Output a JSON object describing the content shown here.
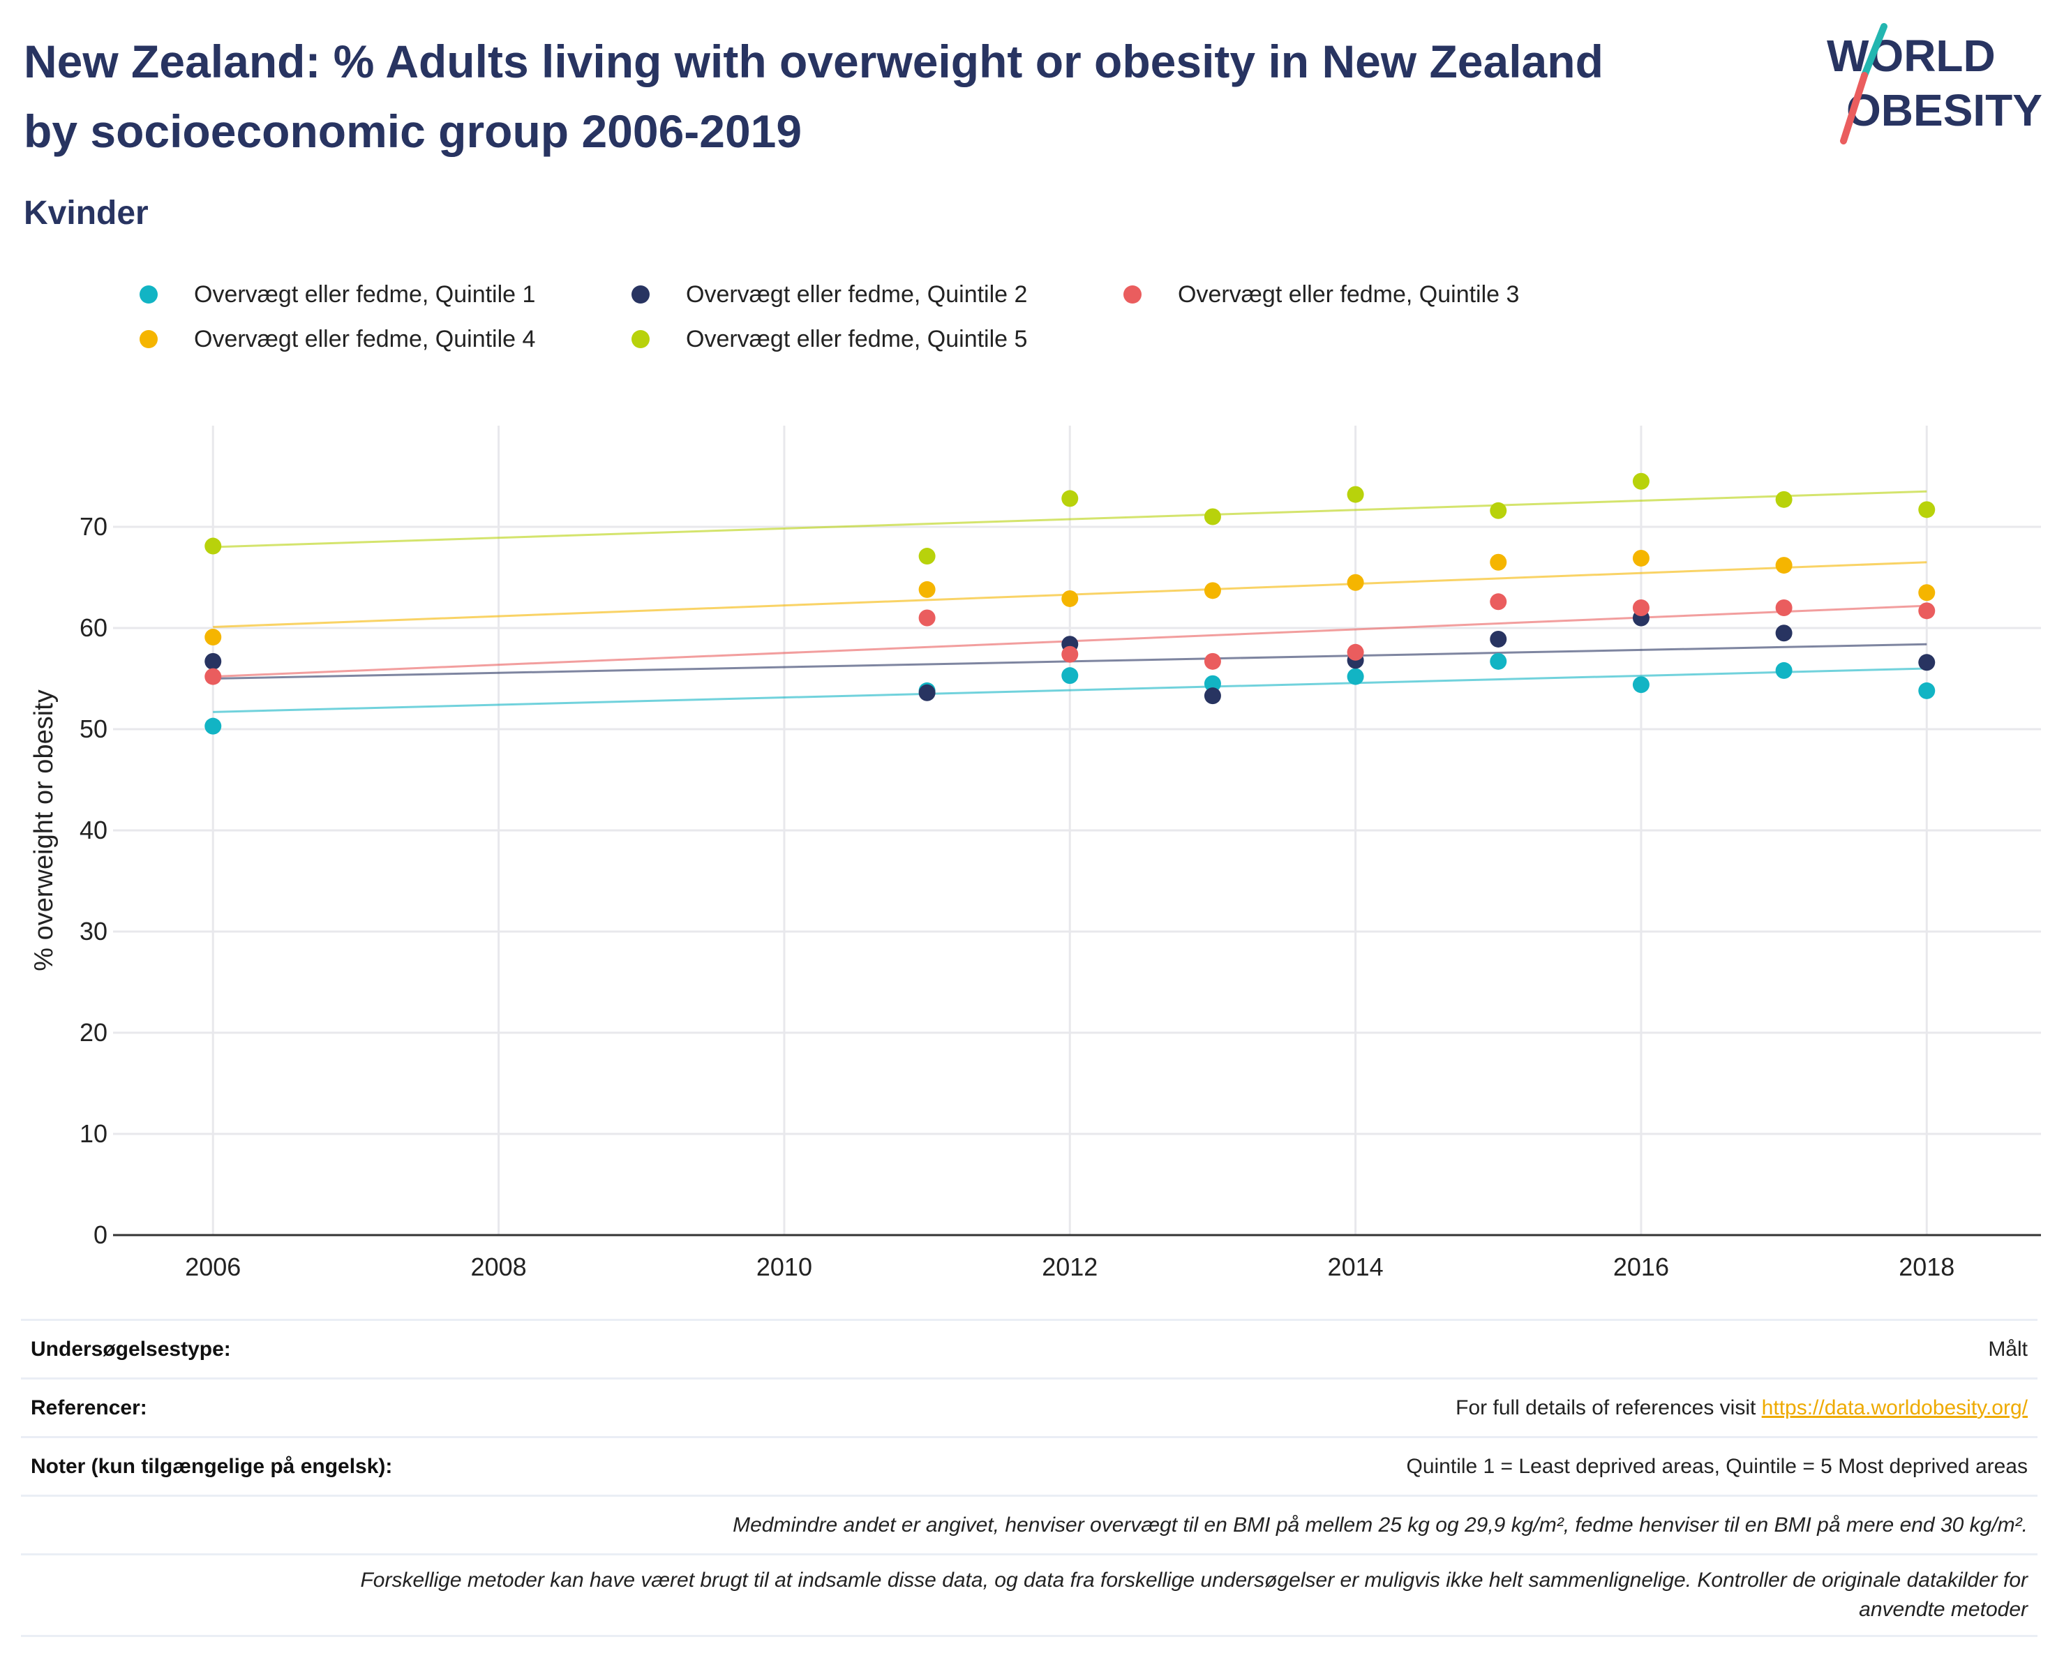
{
  "title": "New Zealand: % Adults living with overweight or obesity in New Zealand by socioeconomic group 2006-2019",
  "subtitle": "Kvinder",
  "logo": {
    "line1": "WORLD",
    "line2": "OBESITY"
  },
  "colors": {
    "q1": "#12b4c4",
    "q2": "#283461",
    "q3": "#ea5d5e",
    "q4": "#f5b500",
    "q5": "#b8d20b",
    "brand": "#283461",
    "grid": "#e8e8ec",
    "link": "#eeaa00"
  },
  "legend": [
    {
      "label": "Overvægt eller fedme, Quintile 1",
      "color": "#12b4c4"
    },
    {
      "label": "Overvægt eller fedme, Quintile 2",
      "color": "#283461"
    },
    {
      "label": "Overvægt eller fedme, Quintile 3",
      "color": "#ea5d5e"
    },
    {
      "label": "Overvægt eller fedme, Quintile 4",
      "color": "#f5b500"
    },
    {
      "label": "Overvægt eller fedme, Quintile 5",
      "color": "#b8d20b"
    }
  ],
  "chart_data": {
    "type": "scatter",
    "title": "",
    "xlabel": "",
    "ylabel": "% overweight or obesity",
    "xlim": [
      2005.3,
      2018.8
    ],
    "ylim": [
      0,
      80
    ],
    "xticks": [
      2006,
      2008,
      2010,
      2012,
      2014,
      2016,
      2018
    ],
    "yticks": [
      0,
      10,
      20,
      30,
      40,
      50,
      60,
      70
    ],
    "grid": true,
    "legend_position": "top",
    "trendlines": true,
    "series": [
      {
        "name": "Overvægt eller fedme, Quintile 1",
        "color": "#12b4c4",
        "x": [
          2006,
          2011,
          2012,
          2013,
          2014,
          2015,
          2016,
          2017,
          2018
        ],
        "y": [
          50.3,
          53.8,
          55.3,
          54.5,
          55.2,
          56.7,
          54.4,
          55.8,
          53.8
        ],
        "trend": [
          51.7,
          56.0
        ]
      },
      {
        "name": "Overvægt eller fedme, Quintile 2",
        "color": "#283461",
        "x": [
          2006,
          2011,
          2012,
          2013,
          2014,
          2015,
          2016,
          2017,
          2018
        ],
        "y": [
          56.7,
          53.6,
          58.4,
          53.3,
          56.8,
          58.9,
          61.0,
          59.5,
          56.6
        ],
        "trend": [
          55.0,
          58.4
        ]
      },
      {
        "name": "Overvægt eller fedme, Quintile 3",
        "color": "#ea5d5e",
        "x": [
          2006,
          2011,
          2012,
          2013,
          2014,
          2015,
          2016,
          2017,
          2018
        ],
        "y": [
          55.2,
          61.0,
          57.4,
          56.7,
          57.6,
          62.6,
          62.0,
          62.0,
          61.7
        ],
        "trend": [
          55.2,
          62.2
        ]
      },
      {
        "name": "Overvægt eller fedme, Quintile 4",
        "color": "#f5b500",
        "x": [
          2006,
          2011,
          2012,
          2013,
          2014,
          2015,
          2016,
          2017,
          2018
        ],
        "y": [
          59.1,
          63.8,
          62.9,
          63.7,
          64.5,
          66.5,
          66.9,
          66.2,
          63.5
        ],
        "trend": [
          60.1,
          66.5
        ]
      },
      {
        "name": "Overvægt eller fedme, Quintile 5",
        "color": "#b8d20b",
        "x": [
          2006,
          2011,
          2012,
          2013,
          2014,
          2015,
          2016,
          2017,
          2018
        ],
        "y": [
          68.1,
          67.1,
          72.8,
          71.0,
          73.2,
          71.6,
          74.5,
          72.7,
          71.7
        ],
        "trend": [
          68.0,
          73.5
        ]
      }
    ]
  },
  "info_table": {
    "survey_type": {
      "label": "Undersøgelsestype:",
      "value": "Målt"
    },
    "references": {
      "label": "Referencer:",
      "value_prefix": "For full details of references visit ",
      "link_text": "https://data.worldobesity.org/"
    },
    "notes": {
      "label": "Noter (kun tilgængelige på engelsk):",
      "value": "Quintile 1 = Least deprived areas, Quintile = 5 Most deprived areas"
    },
    "definition_note": "Medmindre andet er angivet, henviser overvægt til en BMI på mellem 25 kg og 29,9 kg/m², fedme henviser til en BMI på mere end 30 kg/m².",
    "methods_note_line1": "Forskellige metoder kan have været brugt til at indsamle disse data, og data fra forskellige undersøgelser er muligvis ikke helt sammenlignelige. Kontroller de originale datakilder for",
    "methods_note_line2": "anvendte metoder"
  }
}
